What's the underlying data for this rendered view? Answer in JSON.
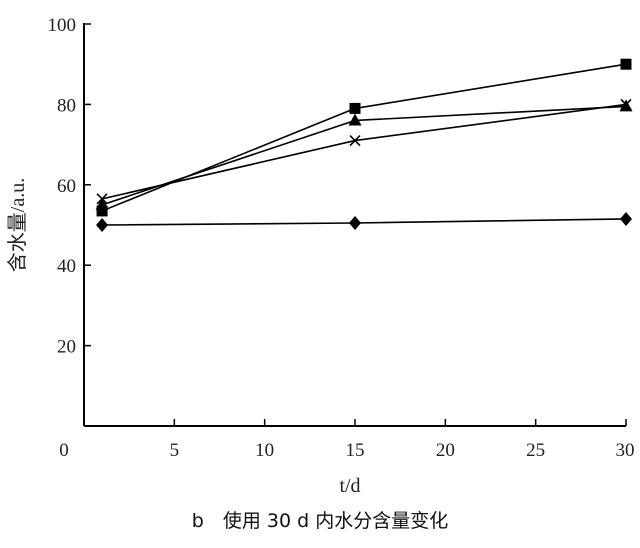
{
  "chart_data": {
    "type": "line",
    "caption": "b　使用 30 d 内水分含量变化",
    "xlabel": "t/d",
    "ylabel": "含水量/a.u.",
    "xlim": [
      0,
      30
    ],
    "ylim": [
      0,
      100
    ],
    "xticks": [
      0,
      5,
      10,
      15,
      20,
      25,
      30
    ],
    "yticks": [
      20,
      40,
      60,
      80,
      100
    ],
    "grid": false,
    "legend": "none",
    "series": [
      {
        "marker": "square",
        "x": [
          1,
          15,
          30
        ],
        "y": [
          53.5,
          79,
          90
        ]
      },
      {
        "marker": "triangle",
        "x": [
          1,
          15,
          30
        ],
        "y": [
          55,
          76,
          79.5
        ]
      },
      {
        "marker": "cross",
        "x": [
          1,
          15,
          30
        ],
        "y": [
          56.5,
          71,
          80
        ]
      },
      {
        "marker": "diamond",
        "x": [
          1,
          15,
          30
        ],
        "y": [
          50,
          50.5,
          51.5
        ]
      }
    ]
  }
}
